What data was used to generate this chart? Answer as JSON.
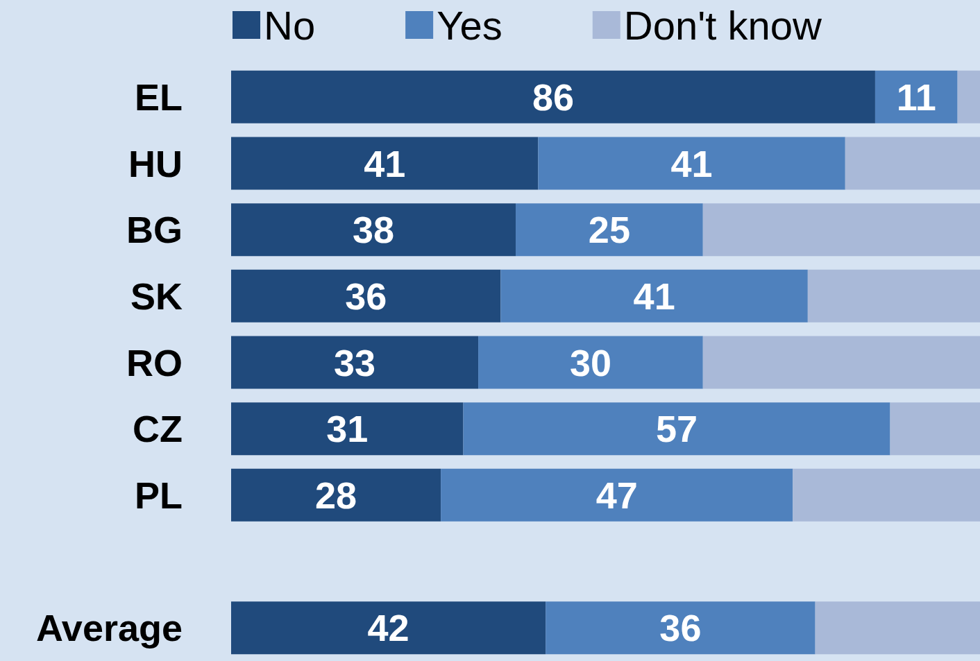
{
  "chart_data": {
    "type": "bar",
    "orientation": "horizontal",
    "stacked": true,
    "categories": [
      "EL",
      "HU",
      "BG",
      "SK",
      "RO",
      "CZ",
      "PL",
      null,
      "Average"
    ],
    "series": [
      {
        "name": "No",
        "color": "#204a7c",
        "values": [
          86,
          41,
          38,
          36,
          33,
          31,
          28,
          null,
          42
        ],
        "value_labels": [
          "86",
          "41",
          "38",
          "36",
          "33",
          "31",
          "28",
          null,
          "42"
        ]
      },
      {
        "name": "Yes",
        "color": "#4f81bd",
        "values": [
          11,
          41,
          25,
          41,
          30,
          57,
          47,
          null,
          36
        ],
        "value_labels": [
          "11",
          "41",
          "25",
          "41",
          "30",
          "57",
          "47",
          null,
          "36"
        ]
      },
      {
        "name": "Don't know",
        "color": "#a9b9d8",
        "values": [
          3,
          18,
          37,
          23,
          37,
          12,
          25,
          null,
          22
        ],
        "value_labels": [
          null,
          null,
          null,
          null,
          null,
          null,
          null,
          null,
          null
        ]
      }
    ],
    "legend": "top"
  }
}
